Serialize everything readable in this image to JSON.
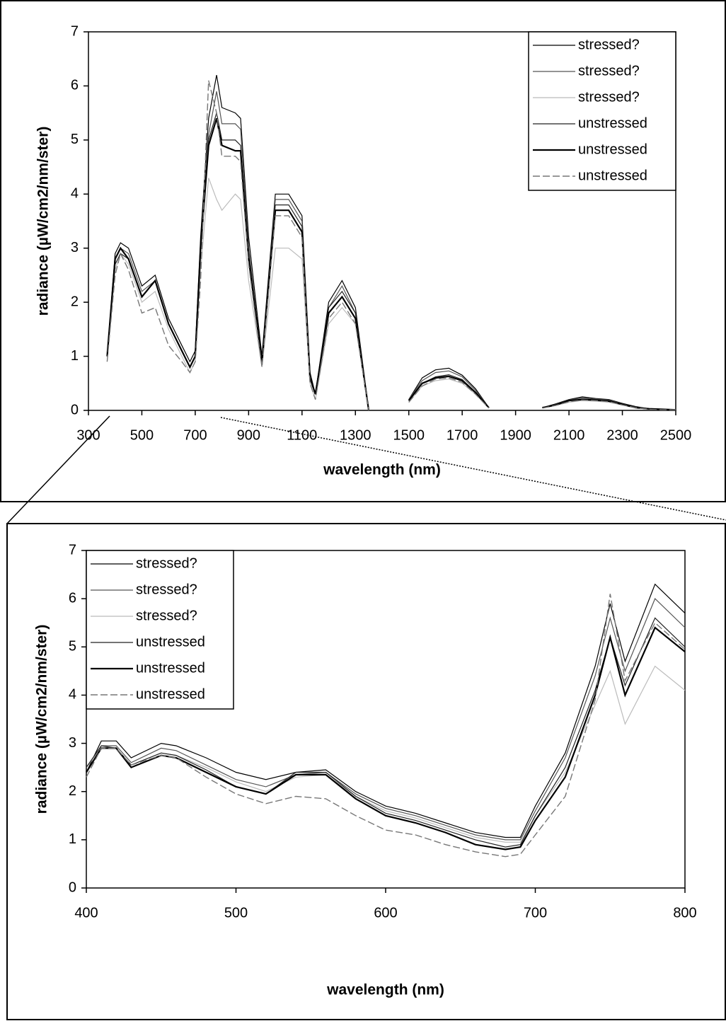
{
  "chart_data": [
    {
      "type": "line",
      "xlabel": "wavelength (nm)",
      "ylabel": "radiance (µW/cm2/nm/ster)",
      "x": [
        370,
        400,
        420,
        450,
        500,
        550,
        600,
        650,
        680,
        700,
        720,
        750,
        780,
        800,
        850,
        870,
        900,
        950,
        1000,
        1050,
        1100,
        1130,
        1150,
        1200,
        1250,
        1300,
        1350,
        1400,
        1450,
        1500,
        1550,
        1600,
        1650,
        1700,
        1750,
        1800,
        1850,
        1950,
        2000,
        2050,
        2100,
        2150,
        2200,
        2250,
        2300,
        2350,
        2400,
        2450,
        2500
      ],
      "xlim": [
        300,
        2500
      ],
      "xticks": [
        300,
        500,
        700,
        900,
        1100,
        1300,
        1500,
        1700,
        1900,
        2100,
        2300,
        2500
      ],
      "ylim": [
        0,
        7
      ],
      "yticks": [
        0,
        1,
        2,
        3,
        4,
        5,
        6,
        7
      ],
      "legend": "upper right",
      "series": [
        {
          "name": "stressed?",
          "color": "#000000",
          "values": [
            1.0,
            2.9,
            3.1,
            3.0,
            2.3,
            2.5,
            1.7,
            1.2,
            0.9,
            1.1,
            3.2,
            5.4,
            6.2,
            5.6,
            5.5,
            5.4,
            3.2,
            1.0,
            4.0,
            4.0,
            3.6,
            0.7,
            0.3,
            2.0,
            2.4,
            1.9,
            0.0,
            null,
            null,
            0.2,
            0.6,
            0.75,
            0.78,
            0.65,
            0.4,
            0.05,
            null,
            null,
            0.05,
            0.12,
            0.2,
            0.25,
            0.22,
            0.2,
            0.13,
            0.07,
            0.03,
            0.02,
            0.01
          ]
        },
        {
          "name": "stressed?",
          "color": "#555555",
          "values": [
            1.0,
            2.8,
            3.0,
            2.9,
            2.2,
            2.4,
            1.6,
            1.1,
            0.8,
            1.0,
            3.0,
            5.1,
            5.9,
            5.3,
            5.3,
            5.2,
            3.0,
            0.9,
            3.9,
            3.9,
            3.5,
            0.6,
            0.3,
            1.9,
            2.3,
            1.8,
            0.0,
            null,
            null,
            0.2,
            0.55,
            0.7,
            0.73,
            0.62,
            0.37,
            0.05,
            null,
            null,
            0.05,
            0.11,
            0.19,
            0.23,
            0.21,
            0.19,
            0.12,
            0.06,
            0.03,
            0.02,
            0.01
          ]
        },
        {
          "name": "stressed?",
          "color": "#bbbbbb",
          "values": [
            0.9,
            2.6,
            2.9,
            2.7,
            2.0,
            2.2,
            1.5,
            1.0,
            0.7,
            0.9,
            2.6,
            4.3,
            3.9,
            3.7,
            4.0,
            3.9,
            2.4,
            0.8,
            3.0,
            3.0,
            2.8,
            0.5,
            0.2,
            1.6,
            1.9,
            1.6,
            0.0,
            null,
            null,
            0.15,
            0.45,
            0.55,
            0.58,
            0.5,
            0.3,
            0.04,
            null,
            null,
            0.04,
            0.09,
            0.15,
            0.18,
            0.17,
            0.15,
            0.1,
            0.05,
            0.02,
            0.01,
            0.01
          ]
        },
        {
          "name": "unstressed",
          "color": "#222222",
          "values": [
            1.0,
            2.7,
            2.9,
            2.8,
            2.1,
            2.4,
            1.6,
            1.1,
            0.8,
            1.0,
            3.1,
            5.0,
            5.5,
            5.0,
            5.0,
            4.9,
            2.9,
            0.9,
            3.8,
            3.8,
            3.4,
            0.6,
            0.3,
            1.9,
            2.2,
            1.8,
            0.0,
            null,
            null,
            0.18,
            0.5,
            0.62,
            0.66,
            0.57,
            0.34,
            0.05,
            null,
            null,
            0.05,
            0.1,
            0.18,
            0.21,
            0.2,
            0.18,
            0.11,
            0.06,
            0.03,
            0.02,
            0.01
          ]
        },
        {
          "name": "unstressed",
          "color": "#000000",
          "values": [
            1.0,
            2.8,
            3.0,
            2.8,
            2.1,
            2.4,
            1.6,
            1.1,
            0.8,
            1.0,
            3.0,
            4.9,
            5.4,
            4.9,
            4.8,
            4.8,
            2.8,
            0.9,
            3.7,
            3.7,
            3.3,
            0.6,
            0.3,
            1.8,
            2.1,
            1.7,
            0.0,
            null,
            null,
            0.18,
            0.5,
            0.6,
            0.63,
            0.55,
            0.33,
            0.05,
            null,
            null,
            0.05,
            0.1,
            0.18,
            0.2,
            0.19,
            0.17,
            0.11,
            0.05,
            0.03,
            0.02,
            0.01
          ]
        },
        {
          "name": "unstressed",
          "color": "#777777",
          "values": [
            0.9,
            2.5,
            2.9,
            2.6,
            1.8,
            1.9,
            1.2,
            0.9,
            0.7,
            0.9,
            2.4,
            6.1,
            5.5,
            4.7,
            4.7,
            4.6,
            2.7,
            0.8,
            3.6,
            3.6,
            3.2,
            0.5,
            0.2,
            1.7,
            2.0,
            1.6,
            0.0,
            null,
            null,
            0.15,
            0.45,
            0.58,
            0.6,
            0.52,
            0.3,
            0.04,
            null,
            null,
            0.04,
            0.09,
            0.16,
            0.19,
            0.18,
            0.16,
            0.1,
            0.05,
            0.02,
            0.01,
            0.01
          ]
        }
      ]
    },
    {
      "type": "line",
      "xlabel": "wavelength (nm)",
      "ylabel": "radiance (µW/cm2/nm/ster)",
      "x": [
        400,
        410,
        420,
        430,
        450,
        460,
        480,
        500,
        520,
        540,
        560,
        580,
        600,
        620,
        640,
        660,
        680,
        690,
        700,
        720,
        740,
        750,
        760,
        780,
        800
      ],
      "xlim": [
        400,
        800
      ],
      "xticks": [
        400,
        500,
        600,
        700,
        800
      ],
      "ylim": [
        0,
        7
      ],
      "yticks": [
        0,
        1,
        2,
        3,
        4,
        5,
        6,
        7
      ],
      "legend": "upper left",
      "series": [
        {
          "name": "stressed?",
          "color": "#000000",
          "values": [
            2.4,
            3.05,
            3.05,
            2.7,
            3.0,
            2.95,
            2.7,
            2.4,
            2.25,
            2.4,
            2.45,
            2.0,
            1.7,
            1.55,
            1.35,
            1.15,
            1.05,
            1.05,
            1.7,
            2.8,
            4.6,
            5.9,
            4.7,
            6.3,
            5.7
          ]
        },
        {
          "name": "stressed?",
          "color": "#555555",
          "values": [
            2.5,
            2.95,
            2.95,
            2.6,
            2.9,
            2.85,
            2.55,
            2.25,
            2.1,
            2.35,
            2.4,
            1.95,
            1.65,
            1.5,
            1.3,
            1.1,
            1.0,
            1.0,
            1.6,
            2.7,
            4.4,
            5.6,
            4.5,
            6.0,
            5.4
          ]
        },
        {
          "name": "stressed?",
          "color": "#bbbbbb",
          "values": [
            2.5,
            2.9,
            2.9,
            2.55,
            2.8,
            2.75,
            2.5,
            2.2,
            2.0,
            2.3,
            2.35,
            1.9,
            1.6,
            1.45,
            1.25,
            1.05,
            0.95,
            0.95,
            1.5,
            2.4,
            3.8,
            4.5,
            3.4,
            4.6,
            4.1
          ]
        },
        {
          "name": "unstressed",
          "color": "#222222",
          "values": [
            2.5,
            2.95,
            2.9,
            2.55,
            2.8,
            2.75,
            2.45,
            2.1,
            1.95,
            2.4,
            2.4,
            1.9,
            1.55,
            1.4,
            1.2,
            1.0,
            0.85,
            0.9,
            1.5,
            2.5,
            4.1,
            5.2,
            4.2,
            5.6,
            5.0
          ]
        },
        {
          "name": "unstressed",
          "color": "#000000",
          "values": [
            2.4,
            2.9,
            2.9,
            2.5,
            2.75,
            2.7,
            2.4,
            2.1,
            1.95,
            2.35,
            2.35,
            1.85,
            1.5,
            1.35,
            1.15,
            0.9,
            0.8,
            0.85,
            1.4,
            2.3,
            4.0,
            5.2,
            4.0,
            5.4,
            4.9
          ]
        },
        {
          "name": "unstressed",
          "color": "#777777",
          "values": [
            2.3,
            2.9,
            2.9,
            2.55,
            2.75,
            2.7,
            2.3,
            1.95,
            1.75,
            1.9,
            1.85,
            1.5,
            1.2,
            1.1,
            0.9,
            0.75,
            0.65,
            0.7,
            1.1,
            1.9,
            3.9,
            6.1,
            4.3,
            5.5,
            4.95
          ]
        }
      ]
    }
  ]
}
